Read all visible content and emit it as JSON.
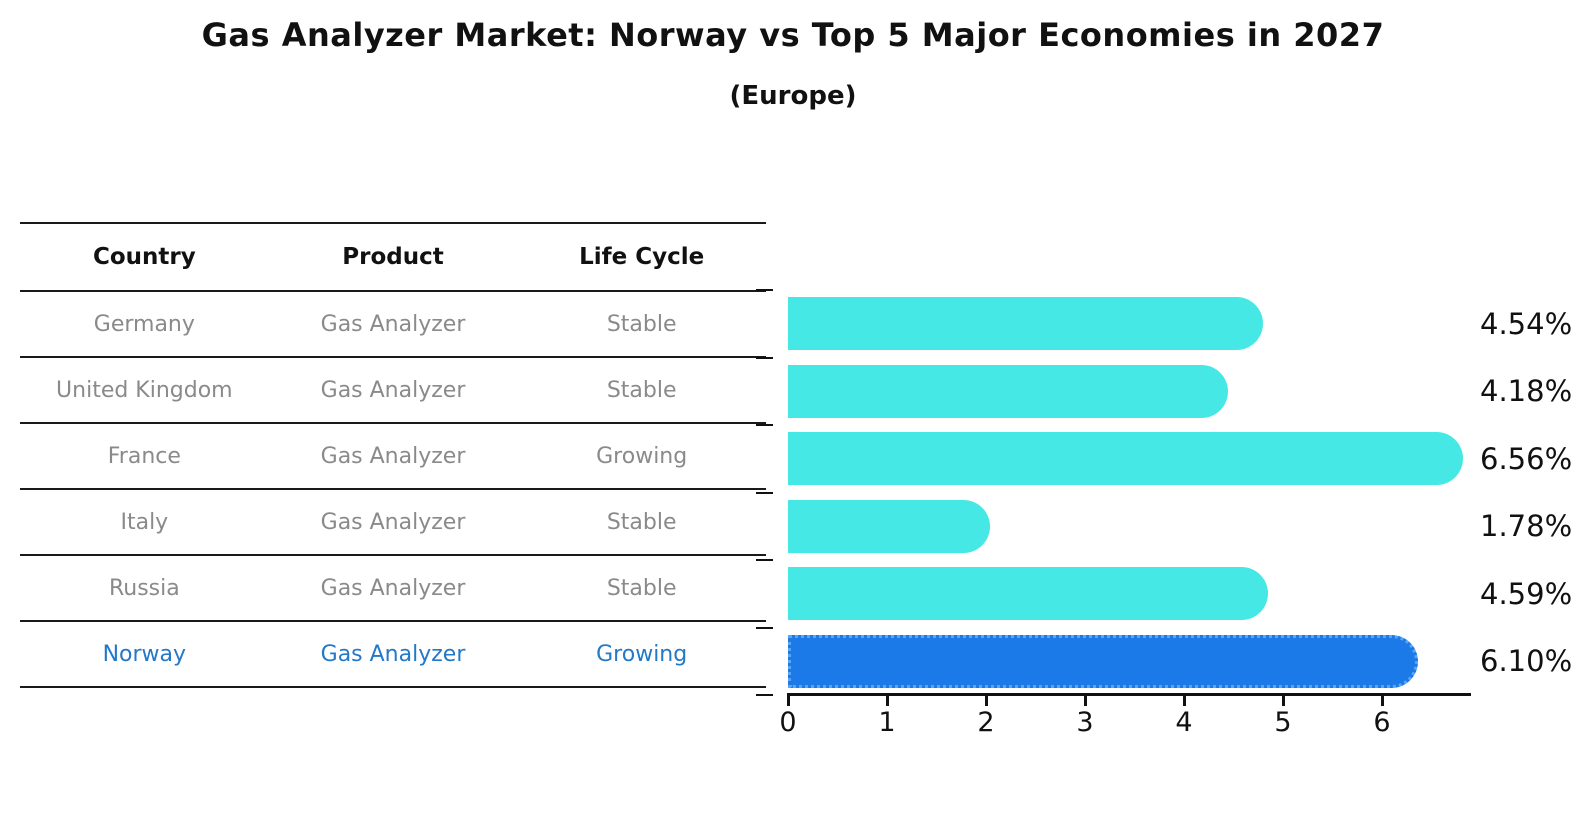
{
  "title": "Gas Analyzer Market: Norway vs Top 5 Major Economies in 2027",
  "subtitle": "(Europe)",
  "table": {
    "headers": [
      "Country",
      "Product",
      "Life Cycle"
    ],
    "rows": [
      {
        "country": "Germany",
        "product": "Gas Analyzer",
        "life_cycle": "Stable",
        "highlight": false
      },
      {
        "country": "United Kingdom",
        "product": "Gas Analyzer",
        "life_cycle": "Stable",
        "highlight": false
      },
      {
        "country": "France",
        "product": "Gas Analyzer",
        "life_cycle": "Growing",
        "highlight": false
      },
      {
        "country": "Italy",
        "product": "Gas Analyzer",
        "life_cycle": "Stable",
        "highlight": false
      },
      {
        "country": "Russia",
        "product": "Gas Analyzer",
        "life_cycle": "Stable",
        "highlight": false
      },
      {
        "country": "Norway",
        "product": "Gas Analyzer",
        "life_cycle": "Growing",
        "highlight": true
      }
    ]
  },
  "chart_data": {
    "type": "bar",
    "orientation": "horizontal",
    "title": "Gas Analyzer Market: Norway vs Top 5 Major Economies in 2027",
    "subtitle": "(Europe)",
    "categories": [
      "Germany",
      "United Kingdom",
      "France",
      "Italy",
      "Russia",
      "Norway"
    ],
    "values": [
      4.54,
      4.18,
      6.56,
      1.78,
      4.59,
      6.1
    ],
    "value_labels": [
      "4.54%",
      "4.18%",
      "6.56%",
      "1.78%",
      "4.59%",
      "6.10%"
    ],
    "highlight_index": 5,
    "x_ticks": [
      "0",
      "1",
      "2",
      "3",
      "4",
      "5",
      "6"
    ],
    "xlim": [
      0,
      6.9
    ],
    "grid": false,
    "legend": false,
    "bar_color": "#45e8e4",
    "highlight_bar_color": "#1b7ae8",
    "highlight_edge_color": "#5aa5f5",
    "highlight_text_color": "#2478c8",
    "row_text_color": "#8a8a8a"
  }
}
